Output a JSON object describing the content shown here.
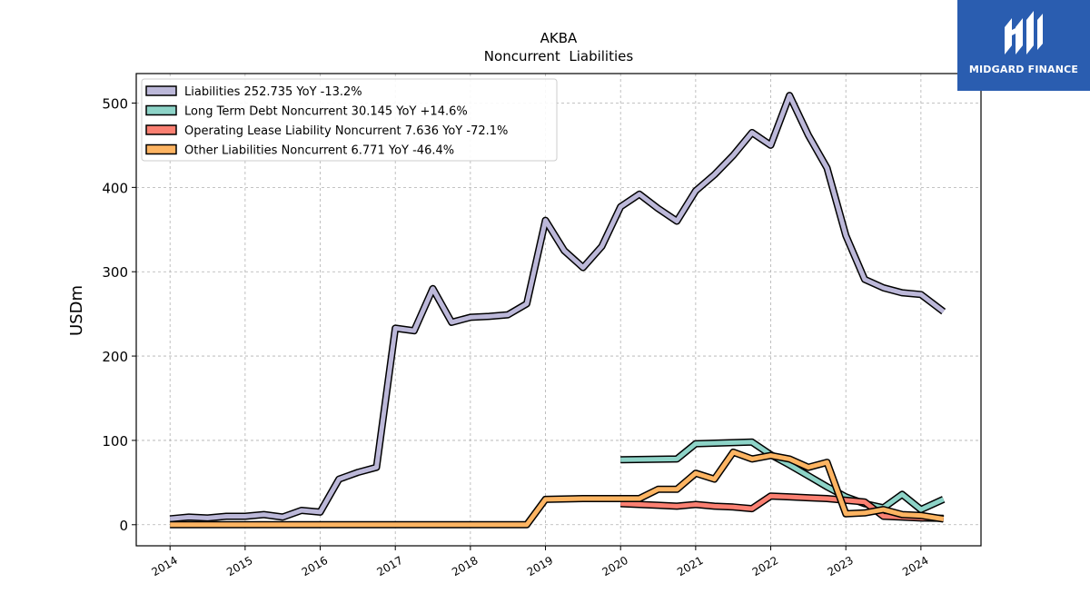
{
  "chart_data": {
    "type": "line",
    "title": "AKBA",
    "subtitle": "Noncurrent  Liabilities",
    "xlabel": "",
    "ylabel": "USDm",
    "xlim": [
      2013.55,
      2024.8
    ],
    "ylim": [
      -25,
      535
    ],
    "x_ticks": [
      "2014",
      "2015",
      "2016",
      "2017",
      "2018",
      "2019",
      "2020",
      "2021",
      "2022",
      "2023",
      "2024"
    ],
    "y_ticks": [
      0,
      100,
      200,
      300,
      400,
      500
    ],
    "grid": true,
    "legend_position": "top-left",
    "series": [
      {
        "name": "Liabilities  252.735 YoY -13.2%",
        "color": "#bcb8d9",
        "points": [
          [
            2014.0,
            7
          ],
          [
            2014.25,
            9
          ],
          [
            2014.5,
            8
          ],
          [
            2014.75,
            10
          ],
          [
            2015.0,
            10
          ],
          [
            2015.25,
            12
          ],
          [
            2015.5,
            9
          ],
          [
            2015.75,
            17
          ],
          [
            2016.0,
            15
          ],
          [
            2016.25,
            54
          ],
          [
            2016.5,
            62
          ],
          [
            2016.75,
            68
          ],
          [
            2017.0,
            233
          ],
          [
            2017.25,
            230
          ],
          [
            2017.5,
            280
          ],
          [
            2017.75,
            240
          ],
          [
            2018.0,
            246
          ],
          [
            2018.25,
            247
          ],
          [
            2018.5,
            249
          ],
          [
            2018.75,
            262
          ],
          [
            2019.0,
            361
          ],
          [
            2019.25,
            325
          ],
          [
            2019.5,
            305
          ],
          [
            2019.75,
            330
          ],
          [
            2020.0,
            377
          ],
          [
            2020.25,
            392
          ],
          [
            2020.5,
            375
          ],
          [
            2020.75,
            360
          ],
          [
            2021.0,
            396
          ],
          [
            2021.25,
            415
          ],
          [
            2021.5,
            438
          ],
          [
            2021.75,
            465
          ],
          [
            2022.0,
            450
          ],
          [
            2022.25,
            509
          ],
          [
            2022.5,
            462
          ],
          [
            2022.75,
            423
          ],
          [
            2023.0,
            343
          ],
          [
            2023.25,
            291
          ],
          [
            2023.5,
            281
          ],
          [
            2023.75,
            275
          ],
          [
            2024.0,
            273
          ],
          [
            2024.3,
            252.735
          ]
        ]
      },
      {
        "name": "Long Term Debt Noncurrent  30.145 YoY +14.6%",
        "color": "#8dd3c7",
        "points": [
          [
            2020.0,
            77
          ],
          [
            2020.75,
            78
          ],
          [
            2021.0,
            96
          ],
          [
            2021.75,
            98
          ],
          [
            2022.0,
            83
          ],
          [
            2022.25,
            71
          ],
          [
            2022.5,
            58
          ],
          [
            2022.75,
            45
          ],
          [
            2023.0,
            33
          ],
          [
            2023.25,
            25
          ],
          [
            2023.5,
            20
          ],
          [
            2023.75,
            36
          ],
          [
            2024.0,
            18
          ],
          [
            2024.3,
            30.145
          ]
        ]
      },
      {
        "name": "Operating Lease Liability Noncurrent  7.636 YoY -72.1%",
        "color": "#fb8072",
        "points": [
          [
            2020.0,
            25
          ],
          [
            2020.25,
            24
          ],
          [
            2020.5,
            23
          ],
          [
            2020.75,
            22
          ],
          [
            2021.0,
            24
          ],
          [
            2021.25,
            22
          ],
          [
            2021.5,
            21
          ],
          [
            2021.75,
            19
          ],
          [
            2022.0,
            34
          ],
          [
            2022.25,
            33
          ],
          [
            2022.5,
            32
          ],
          [
            2022.75,
            31
          ],
          [
            2023.0,
            29
          ],
          [
            2023.25,
            27
          ],
          [
            2023.5,
            10
          ],
          [
            2023.75,
            9
          ],
          [
            2024.0,
            8
          ],
          [
            2024.3,
            7.636
          ]
        ]
      },
      {
        "name": "Other Liabilities Noncurrent  6.771 YoY -46.4%",
        "color": "#fdb462",
        "points": [
          [
            2014.0,
            0
          ],
          [
            2014.5,
            0
          ],
          [
            2015.0,
            0
          ],
          [
            2015.5,
            0
          ],
          [
            2016.0,
            0
          ],
          [
            2016.5,
            0
          ],
          [
            2017.0,
            0
          ],
          [
            2017.5,
            0
          ],
          [
            2018.0,
            0
          ],
          [
            2018.5,
            0
          ],
          [
            2018.75,
            0
          ],
          [
            2019.0,
            30
          ],
          [
            2019.5,
            31
          ],
          [
            2020.0,
            31
          ],
          [
            2020.25,
            31
          ],
          [
            2020.5,
            42
          ],
          [
            2020.75,
            42
          ],
          [
            2021.0,
            61
          ],
          [
            2021.25,
            54
          ],
          [
            2021.5,
            86
          ],
          [
            2021.75,
            78
          ],
          [
            2022.0,
            82
          ],
          [
            2022.25,
            78
          ],
          [
            2022.5,
            68
          ],
          [
            2022.75,
            74
          ],
          [
            2023.0,
            13
          ],
          [
            2023.25,
            14
          ],
          [
            2023.5,
            18
          ],
          [
            2023.75,
            12
          ],
          [
            2024.0,
            11
          ],
          [
            2024.3,
            6.771
          ]
        ]
      }
    ]
  },
  "logo": {
    "name": "MIDGARD FINANCE",
    "color": "#2a5db0"
  }
}
